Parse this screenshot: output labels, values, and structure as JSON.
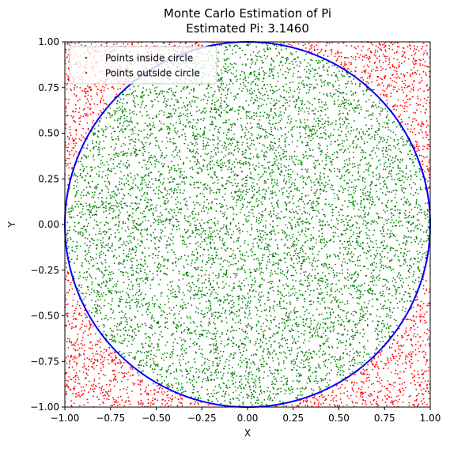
{
  "chart_data": {
    "type": "scatter",
    "title": "Monte Carlo Estimation of Pi",
    "subtitle": "Estimated Pi: 3.1460",
    "xlabel": "X",
    "ylabel": "Y",
    "xlim": [
      -1.0,
      1.0
    ],
    "ylim": [
      -1.0,
      1.0
    ],
    "aspect": "equal",
    "grid": false,
    "xticks": [
      "−1.00",
      "−0.75",
      "−0.50",
      "−0.25",
      "0.00",
      "0.25",
      "0.50",
      "0.75",
      "1.00"
    ],
    "yticks": [
      "−1.00",
      "−0.75",
      "−0.50",
      "−0.25",
      "0.00",
      "0.25",
      "0.50",
      "0.75",
      "1.00"
    ],
    "tick_values": [
      -1.0,
      -0.75,
      -0.5,
      -0.25,
      0.0,
      0.25,
      0.5,
      0.75,
      1.0
    ],
    "legend": {
      "position": "upper-left",
      "entries": [
        "Points inside circle",
        "Points outside circle"
      ]
    },
    "series": [
      {
        "name": "Points inside circle",
        "color": "#008000",
        "marker": "dot",
        "region": "inside unit circle (x² + y² ≤ 1)"
      },
      {
        "name": "Points outside circle",
        "color": "#ff0000",
        "marker": "dot",
        "region": "outside unit circle (x² + y² > 1)"
      }
    ],
    "circle": {
      "center": [
        0.0,
        0.0
      ],
      "radius": 1.0,
      "color": "#0000ff"
    },
    "estimated_pi": 3.146,
    "approx_point_count": 10000
  }
}
